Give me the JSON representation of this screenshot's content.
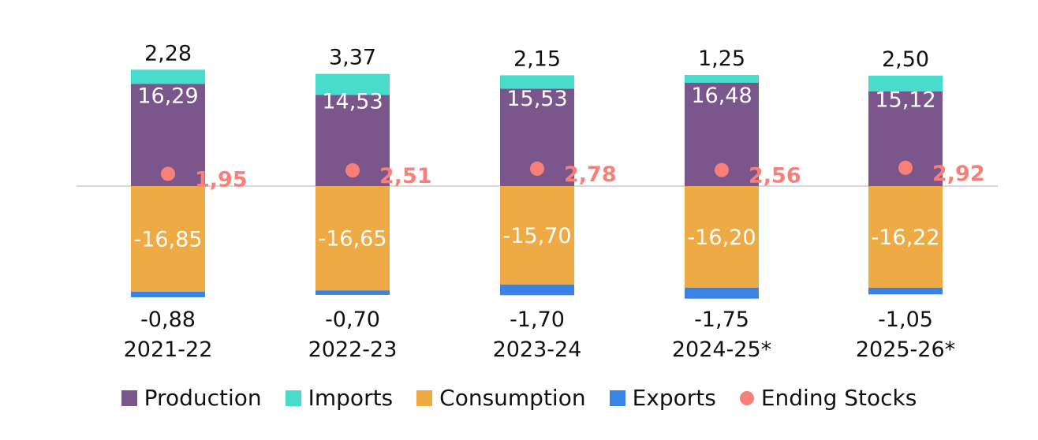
{
  "chart_data": {
    "type": "bar",
    "stacked": true,
    "categories": [
      "2021-22",
      "2022-23",
      "2023-24",
      "2024-25*",
      "2025-26*"
    ],
    "series": [
      {
        "name": "Production",
        "color": "#7b568c",
        "values": [
          16.29,
          14.53,
          15.53,
          16.48,
          15.12
        ],
        "labels": [
          "16,29",
          "14,53",
          "15,53",
          "16,48",
          "15,12"
        ]
      },
      {
        "name": "Imports",
        "color": "#48dccc",
        "values": [
          2.28,
          3.37,
          2.15,
          1.25,
          2.5
        ],
        "labels": [
          "2,28",
          "3,37",
          "2,15",
          "1,25",
          "2,50"
        ]
      },
      {
        "name": "Consumption",
        "color": "#eeaa45",
        "values": [
          -16.85,
          -16.65,
          -15.7,
          -16.2,
          -16.22
        ],
        "labels": [
          "-16,85",
          "-16,65",
          "-15,70",
          "-16,20",
          "-16,22"
        ]
      },
      {
        "name": "Exports",
        "color": "#3a82e4",
        "values": [
          -0.88,
          -0.7,
          -1.7,
          -1.75,
          -1.05
        ],
        "labels": [
          "-0,88",
          "-0,70",
          "-1,70",
          "-1,75",
          "-1,05"
        ]
      },
      {
        "name": "Ending Stocks",
        "type": "scatter",
        "color": "#f98079",
        "values": [
          1.95,
          2.51,
          2.78,
          2.56,
          2.92
        ],
        "labels": [
          "1,95",
          "2,51",
          "2,78",
          "2,56",
          "2,92"
        ]
      }
    ],
    "legend_position": "bottom",
    "grid": false
  }
}
